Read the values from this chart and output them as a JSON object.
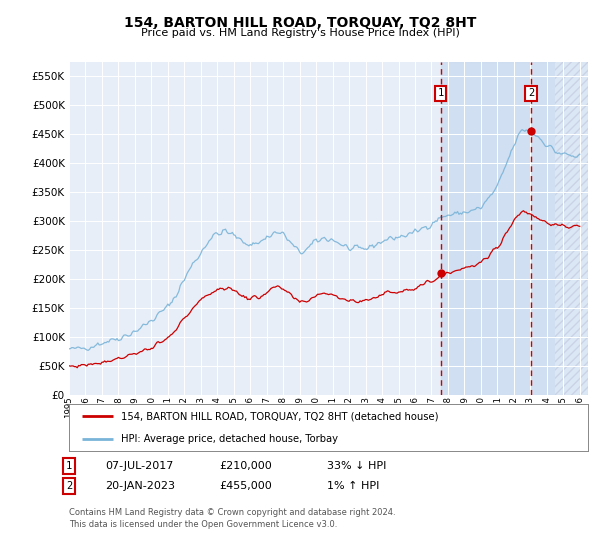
{
  "title": "154, BARTON HILL ROAD, TORQUAY, TQ2 8HT",
  "subtitle": "Price paid vs. HM Land Registry's House Price Index (HPI)",
  "legend_line1": "154, BARTON HILL ROAD, TORQUAY, TQ2 8HT (detached house)",
  "legend_line2": "HPI: Average price, detached house, Torbay",
  "annotation1_date": "07-JUL-2017",
  "annotation1_price": "£210,000",
  "annotation1_hpi": "33% ↓ HPI",
  "annotation2_date": "20-JAN-2023",
  "annotation2_price": "£455,000",
  "annotation2_hpi": "1% ↑ HPI",
  "footer": "Contains HM Land Registry data © Crown copyright and database right 2024.\nThis data is licensed under the Open Government Licence v3.0.",
  "hpi_color": "#7ab4d8",
  "price_color": "#cc0000",
  "marker1_x": 2017.55,
  "marker1_y_price": 210000,
  "marker2_x": 2023.05,
  "marker2_y_hpi": 455000,
  "ylim": [
    0,
    575000
  ],
  "xlim_start": 1995.0,
  "xlim_end": 2026.5,
  "plot_bg_color": "#e8eef8",
  "shade_start": 2017.55,
  "hatch_start": 2024.5,
  "background_color": "#ffffff"
}
